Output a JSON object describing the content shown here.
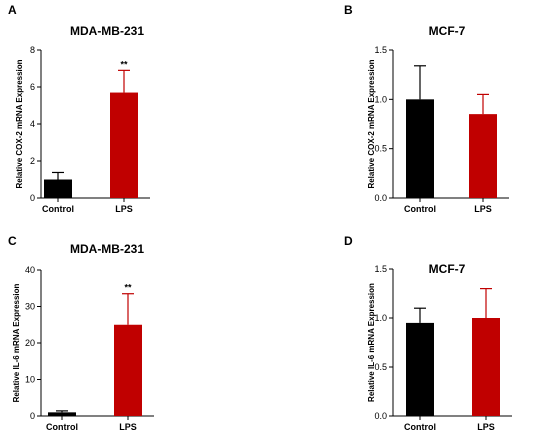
{
  "chart_data": [
    {
      "panel": "A",
      "type": "bar",
      "title": "MDA-MB-231",
      "ylabel": "Relative COX-2 mRNA Expression",
      "categories": [
        "Control",
        "LPS"
      ],
      "values": [
        1.0,
        5.7
      ],
      "errors": [
        0.38,
        1.2
      ],
      "colors": [
        "#000000",
        "#c00000"
      ],
      "significance": [
        "",
        "**"
      ],
      "ylim": [
        0,
        8
      ],
      "yticks": [
        "0",
        "2",
        "4",
        "6",
        "8"
      ]
    },
    {
      "panel": "B",
      "type": "bar",
      "title": "MCF-7",
      "ylabel": "Relative COX-2 mRNA Expression",
      "categories": [
        "Control",
        "LPS"
      ],
      "values": [
        1.0,
        0.85
      ],
      "errors": [
        0.34,
        0.2
      ],
      "colors": [
        "#000000",
        "#c00000"
      ],
      "significance": [
        "",
        ""
      ],
      "ylim": [
        0,
        1.5
      ],
      "yticks": [
        "0.0",
        "0.5",
        "1.0",
        "1.5"
      ]
    },
    {
      "panel": "C",
      "type": "bar",
      "title": "MDA-MB-231",
      "ylabel": "Relative IL-6 mRNA Expression",
      "categories": [
        "Control",
        "LPS"
      ],
      "values": [
        1.0,
        25.0
      ],
      "errors": [
        0.4,
        8.5
      ],
      "colors": [
        "#000000",
        "#c00000"
      ],
      "significance": [
        "",
        "**"
      ],
      "ylim": [
        0,
        40
      ],
      "yticks": [
        "0",
        "10",
        "20",
        "30",
        "40"
      ]
    },
    {
      "panel": "D",
      "type": "bar",
      "title": "MCF-7",
      "ylabel": "Relative IL-6 mRNA Expression",
      "categories": [
        "Control",
        "LPS"
      ],
      "values": [
        0.95,
        1.0
      ],
      "errors": [
        0.15,
        0.3
      ],
      "colors": [
        "#000000",
        "#c00000"
      ],
      "significance": [
        "",
        ""
      ],
      "ylim": [
        0,
        1.5
      ],
      "yticks": [
        "0.0",
        "0.5",
        "1.0",
        "1.5"
      ]
    }
  ]
}
